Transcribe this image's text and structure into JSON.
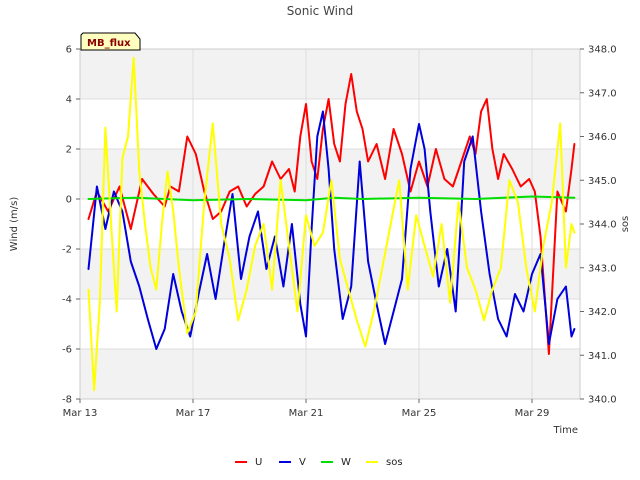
{
  "chart_data": {
    "type": "line",
    "title": "Sonic Wind",
    "site_label": "MB_flux",
    "xlabel": "Time",
    "ylabel": "Wind (m/s)",
    "y2label": "sos",
    "x_tick_labels": [
      "Mar 13",
      "Mar 17",
      "Mar 21",
      "Mar 25",
      "Mar 29"
    ],
    "x_tick_days": [
      0,
      4,
      8,
      12,
      16
    ],
    "xlim_days": [
      0,
      17.7
    ],
    "ylim": [
      -8,
      6
    ],
    "y_ticks": [
      -8,
      -6,
      -4,
      -2,
      0,
      2,
      4,
      6
    ],
    "y_tick_labels": [
      "-8",
      "-6",
      "-4",
      "-2",
      "0",
      "2",
      "4",
      "6"
    ],
    "y2lim": [
      340.0,
      348.0
    ],
    "y2_ticks": [
      340,
      341,
      342,
      343,
      344,
      345,
      346,
      347,
      348
    ],
    "y2_tick_labels": [
      "340.0",
      "341.0",
      "342.0",
      "343.0",
      "344.0",
      "345.0",
      "346.0",
      "347.0",
      "348.0"
    ],
    "legend_position": "bottom-center",
    "series": [
      {
        "name": "U",
        "color": "#ff0000",
        "axis": "left",
        "days": [
          0.3,
          0.6,
          1.0,
          1.4,
          1.8,
          2.2,
          2.6,
          3.0,
          3.2,
          3.5,
          3.8,
          4.1,
          4.4,
          4.7,
          5.0,
          5.3,
          5.6,
          5.9,
          6.2,
          6.5,
          6.8,
          7.1,
          7.4,
          7.6,
          7.8,
          8.0,
          8.2,
          8.4,
          8.6,
          8.8,
          9.0,
          9.2,
          9.4,
          9.6,
          9.8,
          10.0,
          10.2,
          10.5,
          10.8,
          11.1,
          11.4,
          11.7,
          12.0,
          12.3,
          12.6,
          12.9,
          13.2,
          13.5,
          13.8,
          14.0,
          14.2,
          14.4,
          14.6,
          14.8,
          15.0,
          15.3,
          15.6,
          15.9,
          16.1,
          16.3,
          16.6,
          16.9,
          17.2,
          17.4,
          17.5
        ],
        "values": [
          -0.8,
          0.3,
          -0.5,
          0.5,
          -1.2,
          0.8,
          0.2,
          -0.3,
          0.5,
          0.3,
          2.5,
          1.8,
          0.3,
          -0.8,
          -0.5,
          0.3,
          0.5,
          -0.3,
          0.2,
          0.5,
          1.5,
          0.8,
          1.2,
          0.3,
          2.5,
          3.8,
          1.5,
          0.8,
          2.8,
          4.0,
          2.2,
          1.5,
          3.8,
          5.0,
          3.5,
          2.8,
          1.5,
          2.2,
          0.8,
          2.8,
          1.8,
          0.3,
          1.5,
          0.5,
          2.0,
          0.8,
          0.5,
          1.5,
          2.5,
          1.8,
          3.5,
          4.0,
          2.0,
          0.8,
          1.8,
          1.2,
          0.5,
          0.8,
          0.3,
          -1.5,
          -6.2,
          0.3,
          -0.5,
          1.2,
          2.2
        ]
      },
      {
        "name": "V",
        "color": "#0000dd",
        "axis": "left",
        "days": [
          0.3,
          0.6,
          0.9,
          1.2,
          1.5,
          1.8,
          2.1,
          2.4,
          2.7,
          3.0,
          3.3,
          3.6,
          3.9,
          4.2,
          4.5,
          4.8,
          5.1,
          5.4,
          5.7,
          6.0,
          6.3,
          6.6,
          6.9,
          7.2,
          7.5,
          7.8,
          8.0,
          8.2,
          8.4,
          8.6,
          8.8,
          9.0,
          9.3,
          9.6,
          9.9,
          10.2,
          10.5,
          10.8,
          11.1,
          11.4,
          11.7,
          12.0,
          12.2,
          12.4,
          12.7,
          13.0,
          13.3,
          13.6,
          13.9,
          14.2,
          14.5,
          14.8,
          15.1,
          15.4,
          15.7,
          16.0,
          16.3,
          16.6,
          16.9,
          17.2,
          17.4,
          17.5
        ],
        "values": [
          -2.8,
          0.5,
          -1.2,
          0.3,
          -0.5,
          -2.5,
          -3.5,
          -4.8,
          -6.0,
          -5.2,
          -3.0,
          -4.5,
          -5.5,
          -3.8,
          -2.2,
          -4.0,
          -1.8,
          0.2,
          -3.2,
          -1.5,
          -0.5,
          -2.8,
          -1.5,
          -3.5,
          -1.0,
          -4.2,
          -5.5,
          -1.2,
          2.5,
          3.5,
          1.2,
          -2.0,
          -4.8,
          -3.5,
          1.5,
          -2.5,
          -4.2,
          -5.8,
          -4.5,
          -3.2,
          1.2,
          3.0,
          2.0,
          -0.5,
          -3.5,
          -2.0,
          -4.5,
          1.5,
          2.5,
          -0.5,
          -3.0,
          -4.8,
          -5.5,
          -3.8,
          -4.5,
          -3.0,
          -2.2,
          -5.8,
          -4.0,
          -3.5,
          -5.5,
          -5.2
        ]
      },
      {
        "name": "W",
        "color": "#00dd00",
        "axis": "left",
        "days": [
          0.3,
          2.0,
          4.0,
          6.0,
          8.0,
          9.0,
          10.0,
          12.0,
          14.0,
          16.0,
          17.5
        ],
        "values": [
          0.0,
          0.05,
          -0.05,
          0.0,
          -0.05,
          0.05,
          0.0,
          0.05,
          0.0,
          0.1,
          0.05
        ]
      },
      {
        "name": "sos",
        "color": "#ffff00",
        "axis": "right",
        "days": [
          0.3,
          0.5,
          0.7,
          0.9,
          1.1,
          1.3,
          1.5,
          1.7,
          1.9,
          2.1,
          2.3,
          2.5,
          2.7,
          2.9,
          3.1,
          3.3,
          3.5,
          3.8,
          4.1,
          4.4,
          4.7,
          5.0,
          5.3,
          5.6,
          5.9,
          6.2,
          6.5,
          6.8,
          7.1,
          7.4,
          7.7,
          8.0,
          8.3,
          8.6,
          8.9,
          9.2,
          9.5,
          9.8,
          10.1,
          10.4,
          10.7,
          11.0,
          11.3,
          11.6,
          11.9,
          12.2,
          12.5,
          12.8,
          13.1,
          13.4,
          13.7,
          14.0,
          14.3,
          14.6,
          14.9,
          15.2,
          15.5,
          15.8,
          16.1,
          16.4,
          16.7,
          17.0,
          17.2,
          17.4,
          17.5
        ],
        "values": [
          342.5,
          340.2,
          342.2,
          346.2,
          344.0,
          342.0,
          345.5,
          346.0,
          347.8,
          345.2,
          344.0,
          343.0,
          342.5,
          344.0,
          345.2,
          344.3,
          343.0,
          341.5,
          342.0,
          344.5,
          346.3,
          344.0,
          343.2,
          341.8,
          342.5,
          343.5,
          344.0,
          342.5,
          345.0,
          343.5,
          342.0,
          344.2,
          343.5,
          343.8,
          345.0,
          343.2,
          342.5,
          341.8,
          341.2,
          342.0,
          343.0,
          344.0,
          345.0,
          342.5,
          344.2,
          343.5,
          342.8,
          344.0,
          342.2,
          344.5,
          343.0,
          342.5,
          341.8,
          342.5,
          343.0,
          345.0,
          344.5,
          343.0,
          342.0,
          343.5,
          344.5,
          346.3,
          343.0,
          344.0,
          343.8
        ]
      }
    ]
  }
}
